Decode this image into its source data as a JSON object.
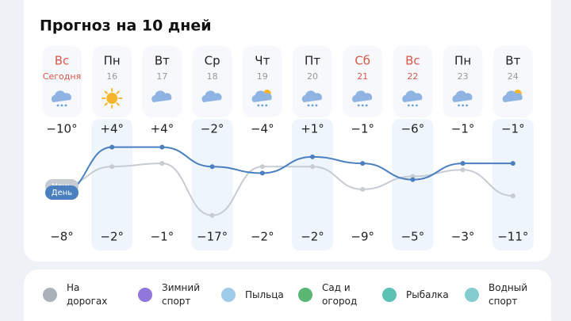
{
  "header": {
    "title": "Прогноз на 10 дней"
  },
  "legend": {
    "night": "Ночь",
    "day": "День"
  },
  "days": [
    {
      "name": "Вс",
      "date": "Сегодня",
      "weekend": true,
      "day_temp": {
        "value": -10,
        "label": "−10°"
      },
      "night_temp": {
        "value": -8,
        "label": "−8°"
      }
    },
    {
      "name": "Пн",
      "date": "16",
      "weekend": false,
      "day_temp": {
        "value": 4,
        "label": "+4°"
      },
      "night_temp": {
        "value": -2,
        "label": "−2°"
      }
    },
    {
      "name": "Вт",
      "date": "17",
      "weekend": false,
      "day_temp": {
        "value": 4,
        "label": "+4°"
      },
      "night_temp": {
        "value": -1,
        "label": "−1°"
      }
    },
    {
      "name": "Ср",
      "date": "18",
      "weekend": false,
      "day_temp": {
        "value": -2,
        "label": "−2°"
      },
      "night_temp": {
        "value": -17,
        "label": "−17°"
      }
    },
    {
      "name": "Чт",
      "date": "19",
      "weekend": false,
      "day_temp": {
        "value": -4,
        "label": "−4°"
      },
      "night_temp": {
        "value": -2,
        "label": "−2°"
      }
    },
    {
      "name": "Пт",
      "date": "20",
      "weekend": false,
      "day_temp": {
        "value": 1,
        "label": "+1°"
      },
      "night_temp": {
        "value": -2,
        "label": "−2°"
      }
    },
    {
      "name": "Сб",
      "date": "21",
      "weekend": true,
      "day_temp": {
        "value": -1,
        "label": "−1°"
      },
      "night_temp": {
        "value": -9,
        "label": "−9°"
      }
    },
    {
      "name": "Вс",
      "date": "22",
      "weekend": true,
      "day_temp": {
        "value": -6,
        "label": "−6°"
      },
      "night_temp": {
        "value": -5,
        "label": "−5°"
      }
    },
    {
      "name": "Пн",
      "date": "23",
      "weekend": false,
      "day_temp": {
        "value": -1,
        "label": "−1°"
      },
      "night_temp": {
        "value": -3,
        "label": "−3°"
      }
    },
    {
      "name": "Вт",
      "date": "24",
      "weekend": false,
      "day_temp": {
        "value": -1,
        "label": "−1°"
      },
      "night_temp": {
        "value": -11,
        "label": "−11°"
      }
    }
  ],
  "activities": [
    "На дорогах",
    "Зимний спорт",
    "Пыльца",
    "Сад и огород",
    "Рыбалка",
    "Водный спорт"
  ]
}
